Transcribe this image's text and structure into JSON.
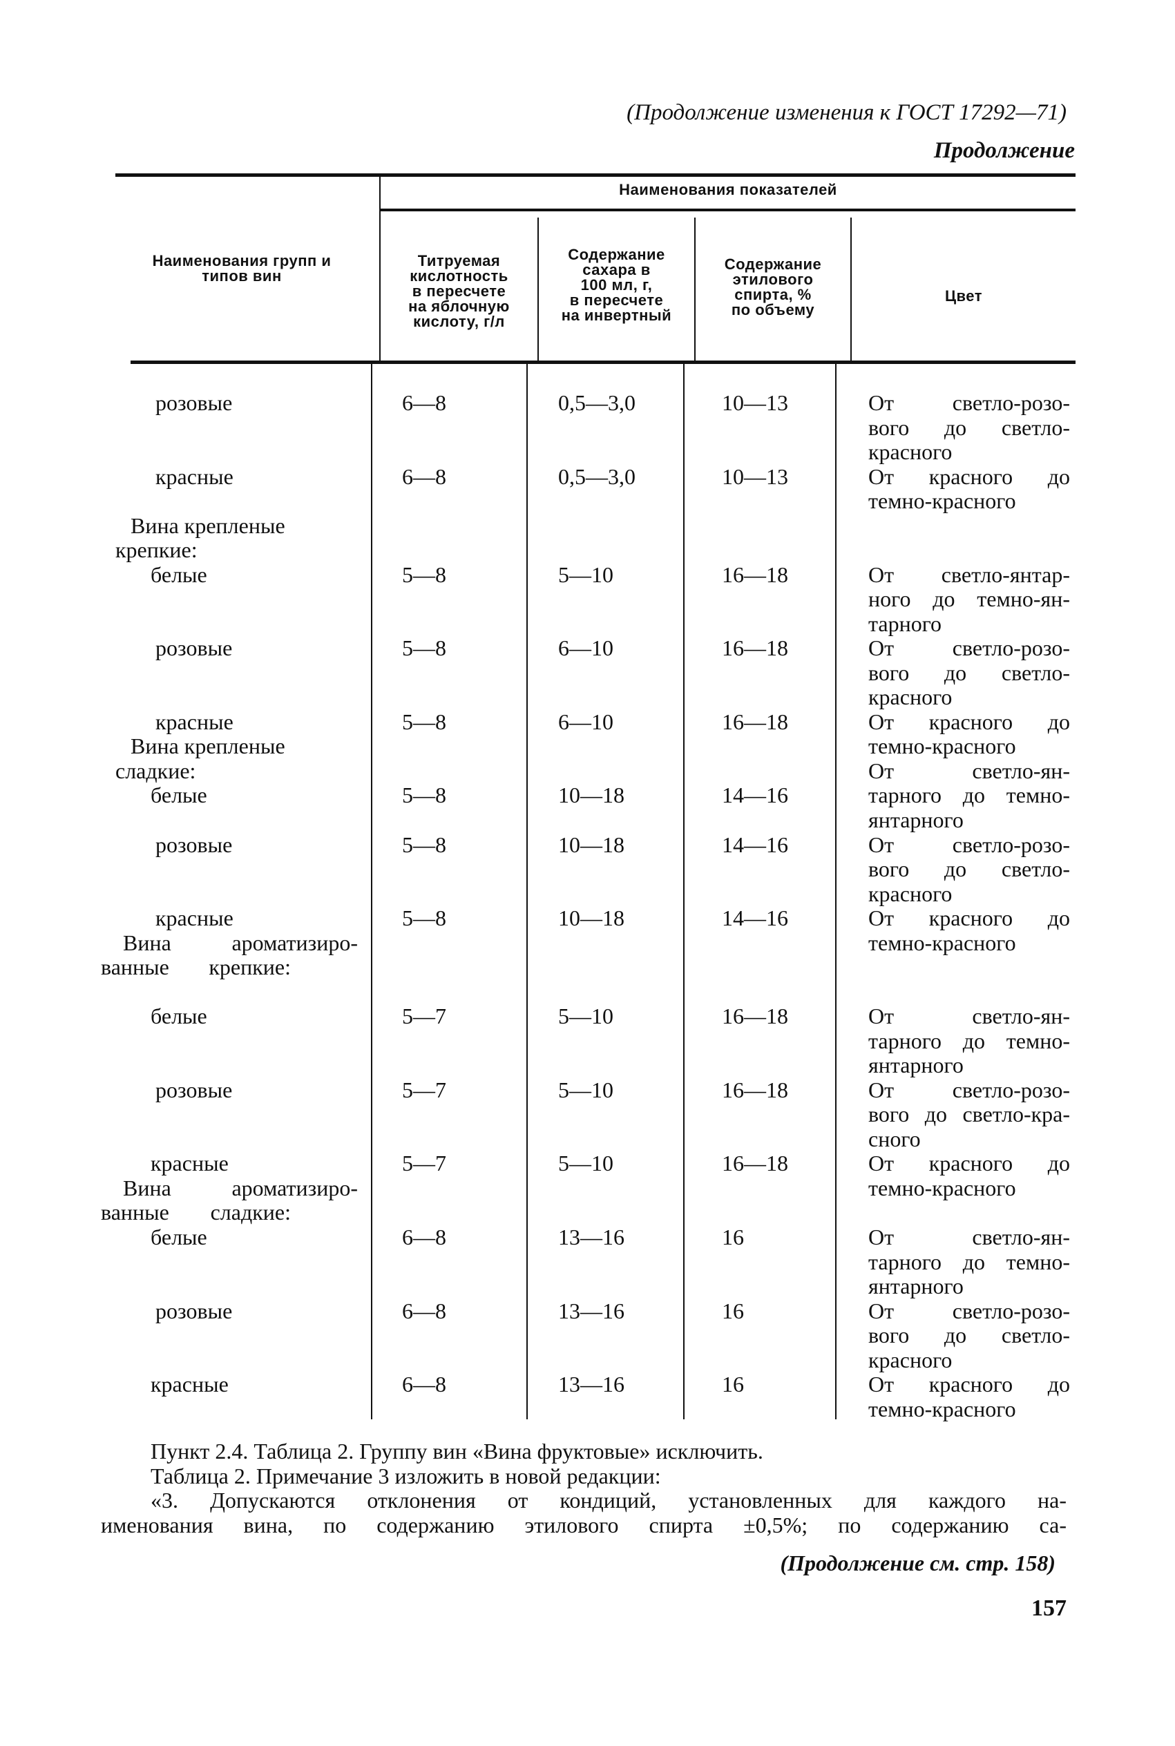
{
  "header": {
    "continuation_title": "(Продолжение изменения к ГОСТ 17292—71)",
    "continued": "Продолжение"
  },
  "table": {
    "group_header": "Наименования групп и типов вин",
    "indicators_header": "Наименования показателей",
    "columns": [
      "Титруемая кислотность в пересчете на яблочную кислоту, г/л",
      "Содержание сахара в 100 мл, г, в пересчете на инвертный",
      "Содержание этилового спирта, % по объему",
      "Цвет"
    ],
    "column_lines": [
      [
        "Титруемая",
        "кислотность",
        "в пересчете",
        "на яблочную",
        "кислоту, г/л"
      ],
      [
        "Содержание",
        "сахара в",
        "100 мл, г,",
        "в пересчете",
        "на инвертный"
      ],
      [
        "Содержание",
        "этилового",
        "спирта, %",
        "по объему"
      ],
      [
        "Цвет"
      ]
    ],
    "groups": [
      {
        "line": 5,
        "lines": [
          "Вина крепленые",
          "крепкие:"
        ]
      },
      {
        "line": 14,
        "lines": [
          "Вина крепленые",
          "сладкие:"
        ]
      },
      {
        "line": 22,
        "lines": [
          "Вина ароматизиро-",
          "ванные крепкие:"
        ]
      },
      {
        "line": 32,
        "lines": [
          "Вина ароматизиро-",
          "ванные сладкие:"
        ]
      }
    ],
    "rows": [
      {
        "line": 0,
        "name": "розовые",
        "acidity": "6—8",
        "sugar": "0,5—3,0",
        "alcohol": "10—13",
        "color_line": 0,
        "color": [
          "От светло-розо-",
          "вого до светло-",
          "красного"
        ]
      },
      {
        "line": 3,
        "name": "красные",
        "acidity": "6—8",
        "sugar": "0,5—3,0",
        "alcohol": "10—13",
        "color_line": 3,
        "color": [
          "От красного до",
          "темно-красного"
        ]
      },
      {
        "line": 7,
        "name": "белые",
        "acidity": "5—8",
        "sugar": "5—10",
        "alcohol": "16—18",
        "color_line": 7,
        "color": [
          "От светло-янтар-",
          "ного до темно-ян-",
          "тарного"
        ]
      },
      {
        "line": 10,
        "name": "розовые",
        "acidity": "5—8",
        "sugar": "6—10",
        "alcohol": "16—18",
        "color_line": 10,
        "color": [
          "От светло-розо-",
          "вого до светло-",
          "красного"
        ]
      },
      {
        "line": 13,
        "name": "красные",
        "acidity": "5—8",
        "sugar": "6—10",
        "alcohol": "16—18",
        "color_line": 13,
        "color": [
          "От красного до",
          "темно-красного"
        ]
      },
      {
        "line": 16,
        "name": "белые",
        "acidity": "5—8",
        "sugar": "10—18",
        "alcohol": "14—16",
        "color_line": 15,
        "color": [
          "От светло-ян-",
          "тарного до темно-",
          "янтарного"
        ]
      },
      {
        "line": 18,
        "name": "розовые",
        "acidity": "5—8",
        "sugar": "10—18",
        "alcohol": "14—16",
        "color_line": 18,
        "color": [
          "От светло-розо-",
          "вого до светло-",
          "красного"
        ]
      },
      {
        "line": 21,
        "name": "красные",
        "acidity": "5—8",
        "sugar": "10—18",
        "alcohol": "14—16",
        "color_line": 21,
        "color": [
          "От красного до",
          "темно-красного"
        ]
      },
      {
        "line": 25,
        "name": "белые",
        "acidity": "5—7",
        "sugar": "5—10",
        "alcohol": "16—18",
        "color_line": 25,
        "color": [
          "От светло-ян-",
          "тарного до темно-",
          "янтарного"
        ]
      },
      {
        "line": 28,
        "name": "розовые",
        "acidity": "5—7",
        "sugar": "5—10",
        "alcohol": "16—18",
        "color_line": 28,
        "color": [
          "От светло-розо-",
          "вого до светло-кра-",
          "сного"
        ]
      },
      {
        "line": 31,
        "name": "красные",
        "acidity": "5—7",
        "sugar": "5—10",
        "alcohol": "16—18",
        "color_line": 31,
        "color": [
          "От красного до",
          "темно-красного"
        ]
      },
      {
        "line": 34,
        "name": "белые",
        "acidity": "6—8",
        "sugar": "13—16",
        "alcohol": "16",
        "color_line": 34,
        "color": [
          "От светло-ян-",
          "тарного до темно-",
          "янтарного"
        ]
      },
      {
        "line": 37,
        "name": "розовые",
        "acidity": "6—8",
        "sugar": "13—16",
        "alcohol": "16",
        "color_line": 37,
        "color": [
          "От светло-розо-",
          "вого до светло-",
          "красного"
        ]
      },
      {
        "line": 40,
        "name": "красные",
        "acidity": "6—8",
        "sugar": "13—16",
        "alcohol": "16",
        "color_line": 40,
        "color": [
          "От красного до",
          "темно-красного"
        ]
      }
    ]
  },
  "footer": {
    "paragraphs": [
      "Пункт 2.4. Таблица 2. Группу вин «Вина фруктовые» исключить.",
      "Таблица 2. Примечание 3 изложить в новой редакции:",
      "«3. Допускаются отклонения от кондиций, установленных для каждого на-",
      "именования вина, по содержанию этилового спирта ±0,5%; по содержанию са-"
    ],
    "continued_on": "(Продолжение см. стр. 158)",
    "page_number": "157"
  }
}
